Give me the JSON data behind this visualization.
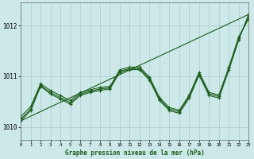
{
  "xlabel": "Graphe pression niveau de la mer (hPa)",
  "bg_color": "#cce8e8",
  "grid_color": "#aacccc",
  "line_color": "#1a5c1a",
  "xlim": [
    0,
    23
  ],
  "ylim": [
    1009.75,
    1012.45
  ],
  "yticks": [
    1010,
    1011,
    1012
  ],
  "xticks": [
    0,
    1,
    2,
    3,
    4,
    5,
    6,
    7,
    8,
    9,
    10,
    11,
    12,
    13,
    14,
    15,
    16,
    17,
    18,
    19,
    20,
    21,
    22,
    23
  ],
  "series": [
    {
      "x": [
        0,
        1,
        2,
        3,
        4,
        5,
        6,
        7,
        8,
        9,
        10,
        11,
        12,
        13,
        14,
        15,
        16,
        17,
        18,
        19,
        20,
        21,
        22,
        23
      ],
      "y": [
        1010.2,
        1010.4,
        1010.85,
        1010.72,
        1010.62,
        1010.52,
        1010.68,
        1010.73,
        1010.78,
        1010.8,
        1011.13,
        1011.18,
        1011.18,
        1010.98,
        1010.58,
        1010.38,
        1010.33,
        1010.63,
        1011.08,
        1010.68,
        1010.63,
        1011.18,
        1011.78,
        1012.13
      ],
      "marker": "+"
    },
    {
      "x": [
        0,
        1,
        2,
        3,
        4,
        5,
        6,
        7,
        8,
        9,
        10,
        11,
        12,
        13,
        14,
        15,
        16,
        17,
        18,
        19,
        20,
        21,
        22,
        23
      ],
      "y": [
        1010.15,
        1010.35,
        1010.82,
        1010.68,
        1010.58,
        1010.48,
        1010.65,
        1010.7,
        1010.75,
        1010.77,
        1011.1,
        1011.15,
        1011.15,
        1010.95,
        1010.55,
        1010.35,
        1010.3,
        1010.6,
        1011.05,
        1010.65,
        1010.6,
        1011.15,
        1011.75,
        1012.18
      ],
      "marker": "+"
    },
    {
      "x": [
        0,
        1,
        2,
        3,
        4,
        5,
        6,
        7,
        8,
        9,
        10,
        11,
        12,
        13,
        14,
        15,
        16,
        17,
        18,
        19,
        20,
        21,
        22,
        23
      ],
      "y": [
        1010.12,
        1010.32,
        1010.8,
        1010.65,
        1010.55,
        1010.45,
        1010.62,
        1010.68,
        1010.72,
        1010.75,
        1011.08,
        1011.13,
        1011.13,
        1010.92,
        1010.52,
        1010.32,
        1010.27,
        1010.57,
        1011.02,
        1010.62,
        1010.57,
        1011.12,
        1011.72,
        1012.22
      ],
      "marker": "+"
    },
    {
      "x": [
        0,
        23
      ],
      "y": [
        1010.12,
        1012.22
      ],
      "marker": null
    }
  ]
}
